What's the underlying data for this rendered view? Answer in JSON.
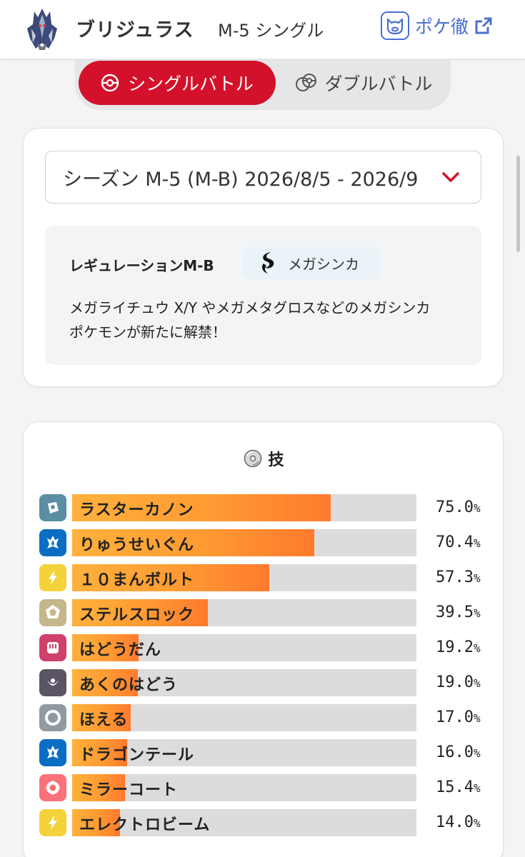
{
  "header": {
    "pokemon_name": "ブリジュラス",
    "season_label": "M-5 シングル",
    "pokedex_link": "ポケ徹"
  },
  "battle_toggle": {
    "single_label": "シングルバトル",
    "double_label": "ダブルバトル",
    "selected": "single",
    "active_color": "#d3112a"
  },
  "season": {
    "selected": "シーズン M-5 (M-B) 2026/8/5 - 2026/9",
    "regulation_title": "レギュレーションM-B",
    "badge_label": "メガシンカ",
    "description_line1": "メガライチュウ X/Y やメガメタグロスなどのメガシンカ",
    "description_line2": "ポケモンが新たに解禁！"
  },
  "moves": {
    "title": "技",
    "items": [
      {
        "name": "ラスターカノン",
        "type": "steel",
        "color": "#5a8ea2",
        "percent": "75.0",
        "unit": "%"
      },
      {
        "name": "りゅうせいぐん",
        "type": "dragon",
        "color": "#0b6dc3",
        "percent": "70.4",
        "unit": "%"
      },
      {
        "name": "１０まんボルト",
        "type": "electric",
        "color": "#f4d23c",
        "percent": "57.3",
        "unit": "%"
      },
      {
        "name": "ステルスロック",
        "type": "rock",
        "color": "#c5b78c",
        "percent": "39.5",
        "unit": "%"
      },
      {
        "name": "はどうだん",
        "type": "fighting",
        "color": "#ce416b",
        "percent": "19.2",
        "unit": "%"
      },
      {
        "name": "あくのはどう",
        "type": "dark",
        "color": "#5a5465",
        "percent": "19.0",
        "unit": "%"
      },
      {
        "name": "ほえる",
        "type": "normal",
        "color": "#919aa2",
        "percent": "17.0",
        "unit": "%"
      },
      {
        "name": "ドラゴンテール",
        "type": "dragon",
        "color": "#0b6dc3",
        "percent": "16.0",
        "unit": "%"
      },
      {
        "name": "ミラーコート",
        "type": "psychic",
        "color": "#fa7179",
        "percent": "15.4",
        "unit": "%"
      },
      {
        "name": "エレクトロビーム",
        "type": "electric",
        "color": "#f4d23c",
        "percent": "14.0",
        "unit": "%"
      }
    ]
  }
}
